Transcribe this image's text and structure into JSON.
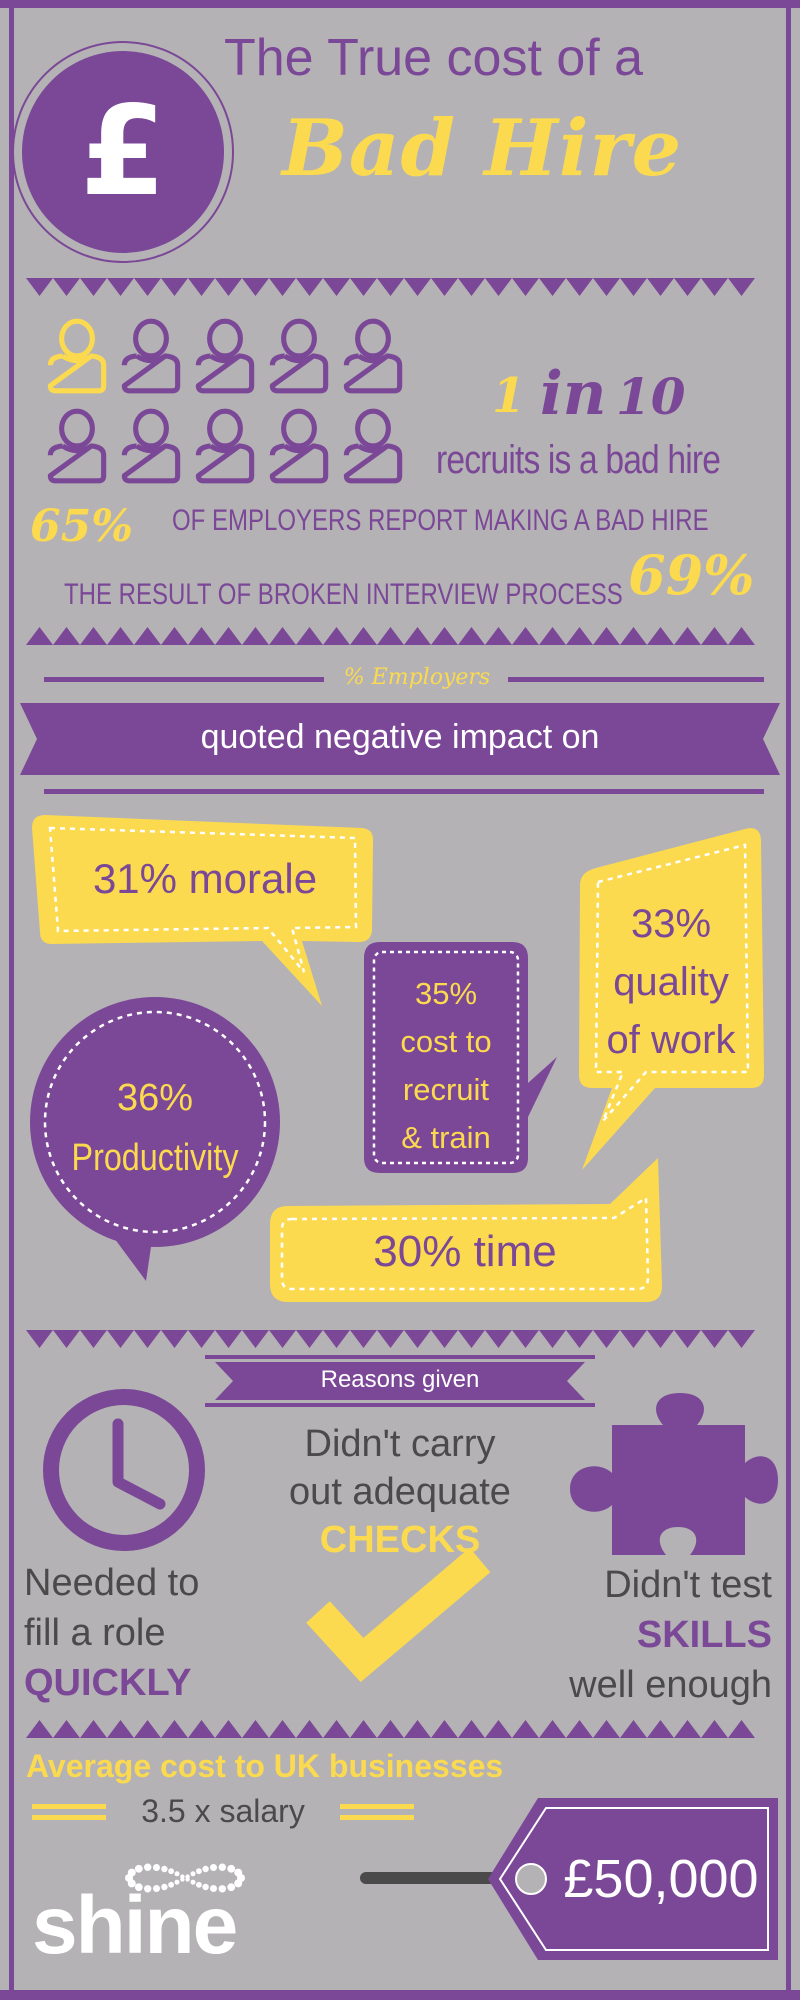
{
  "colors": {
    "purple": "#7b4797",
    "yellow": "#fcda4f",
    "background": "#b4b2b5",
    "dark_text": "#4a4a4a",
    "white": "#ffffff"
  },
  "header": {
    "currency_symbol": "£",
    "title_line1": "The True cost of a",
    "title_line2": "Bad Hire"
  },
  "stats": {
    "ratio_num": "1",
    "ratio_in": "in",
    "ratio_den": "10",
    "ratio_text": "recruits is a bad hire",
    "figure_icons": {
      "total": 10,
      "highlighted": 1,
      "icon": "person-icon"
    },
    "employers_pct": "65%",
    "employers_text": "OF EMPLOYERS REPORT MAKING A BAD HIRE",
    "interview_text": "THE RESULT OF BROKEN INTERVIEW PROCESS",
    "interview_pct": "69%"
  },
  "impact": {
    "label": "% Employers",
    "banner": "quoted negative impact on",
    "morale": "31% morale",
    "cost_lines": [
      "35%",
      "cost to",
      "recruit",
      "& train"
    ],
    "quality_lines": [
      "33%",
      "quality",
      "of work"
    ],
    "productivity_lines": [
      "36%",
      "Productivity"
    ],
    "time": "30% time"
  },
  "reasons": {
    "title": "Reasons given",
    "checks_lines": [
      "Didn't carry",
      "out adequate"
    ],
    "checks_emphasis": "CHECKS",
    "quickly_lines": [
      "Needed to",
      "fill a role"
    ],
    "quickly_emphasis": "QUICKLY",
    "skills_line1": "Didn't test",
    "skills_emphasis": "SKILLS",
    "skills_line3": "well enough",
    "icons": [
      "clock-icon",
      "checkmark-icon",
      "puzzle-piece-icon"
    ]
  },
  "cost": {
    "heading": "Average cost to UK businesses",
    "multiplier": "3.5 x salary",
    "amount": "£50,000"
  },
  "brand": {
    "logo_text": "shine"
  }
}
